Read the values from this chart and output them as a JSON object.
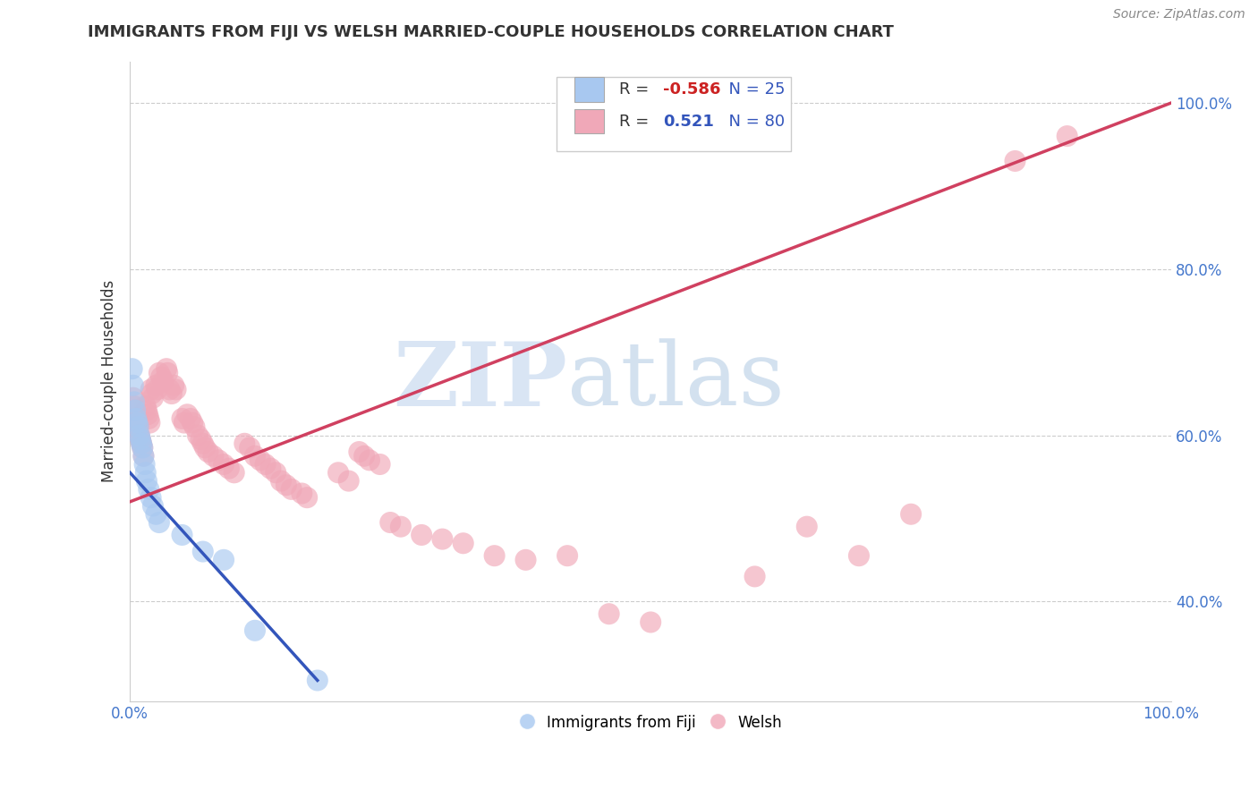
{
  "title": "IMMIGRANTS FROM FIJI VS WELSH MARRIED-COUPLE HOUSEHOLDS CORRELATION CHART",
  "source": "Source: ZipAtlas.com",
  "ylabel": "Married-couple Households",
  "xmin": 0.0,
  "xmax": 1.0,
  "ymin": 0.28,
  "ymax": 1.05,
  "ytick_positions": [
    0.4,
    0.6,
    0.8,
    1.0
  ],
  "fiji_color": "#A8C8F0",
  "welsh_color": "#F0A8B8",
  "fiji_line_color": "#3355BB",
  "welsh_line_color": "#D04060",
  "fiji_R": -0.586,
  "fiji_N": 25,
  "welsh_R": 0.521,
  "welsh_N": 80,
  "watermark_zip": "ZIP",
  "watermark_atlas": "atlas",
  "fiji_scatter": [
    [
      0.002,
      0.68
    ],
    [
      0.003,
      0.66
    ],
    [
      0.004,
      0.64
    ],
    [
      0.005,
      0.63
    ],
    [
      0.006,
      0.62
    ],
    [
      0.007,
      0.615
    ],
    [
      0.008,
      0.61
    ],
    [
      0.009,
      0.6
    ],
    [
      0.01,
      0.595
    ],
    [
      0.011,
      0.59
    ],
    [
      0.012,
      0.585
    ],
    [
      0.013,
      0.575
    ],
    [
      0.014,
      0.565
    ],
    [
      0.015,
      0.555
    ],
    [
      0.016,
      0.545
    ],
    [
      0.018,
      0.535
    ],
    [
      0.02,
      0.525
    ],
    [
      0.022,
      0.515
    ],
    [
      0.025,
      0.505
    ],
    [
      0.028,
      0.495
    ],
    [
      0.05,
      0.48
    ],
    [
      0.07,
      0.46
    ],
    [
      0.09,
      0.45
    ],
    [
      0.12,
      0.365
    ],
    [
      0.18,
      0.305
    ]
  ],
  "welsh_scatter": [
    [
      0.003,
      0.645
    ],
    [
      0.004,
      0.635
    ],
    [
      0.005,
      0.63
    ],
    [
      0.006,
      0.62
    ],
    [
      0.007,
      0.615
    ],
    [
      0.008,
      0.61
    ],
    [
      0.009,
      0.6
    ],
    [
      0.01,
      0.595
    ],
    [
      0.011,
      0.59
    ],
    [
      0.012,
      0.585
    ],
    [
      0.013,
      0.575
    ],
    [
      0.015,
      0.635
    ],
    [
      0.016,
      0.63
    ],
    [
      0.017,
      0.625
    ],
    [
      0.018,
      0.62
    ],
    [
      0.019,
      0.615
    ],
    [
      0.02,
      0.655
    ],
    [
      0.021,
      0.65
    ],
    [
      0.022,
      0.645
    ],
    [
      0.025,
      0.66
    ],
    [
      0.026,
      0.655
    ],
    [
      0.028,
      0.675
    ],
    [
      0.03,
      0.67
    ],
    [
      0.032,
      0.665
    ],
    [
      0.035,
      0.68
    ],
    [
      0.036,
      0.675
    ],
    [
      0.038,
      0.655
    ],
    [
      0.04,
      0.65
    ],
    [
      0.042,
      0.66
    ],
    [
      0.044,
      0.655
    ],
    [
      0.05,
      0.62
    ],
    [
      0.052,
      0.615
    ],
    [
      0.055,
      0.625
    ],
    [
      0.058,
      0.62
    ],
    [
      0.06,
      0.615
    ],
    [
      0.062,
      0.61
    ],
    [
      0.065,
      0.6
    ],
    [
      0.068,
      0.595
    ],
    [
      0.07,
      0.59
    ],
    [
      0.072,
      0.585
    ],
    [
      0.075,
      0.58
    ],
    [
      0.08,
      0.575
    ],
    [
      0.085,
      0.57
    ],
    [
      0.09,
      0.565
    ],
    [
      0.095,
      0.56
    ],
    [
      0.1,
      0.555
    ],
    [
      0.11,
      0.59
    ],
    [
      0.115,
      0.585
    ],
    [
      0.12,
      0.575
    ],
    [
      0.125,
      0.57
    ],
    [
      0.13,
      0.565
    ],
    [
      0.135,
      0.56
    ],
    [
      0.14,
      0.555
    ],
    [
      0.145,
      0.545
    ],
    [
      0.15,
      0.54
    ],
    [
      0.155,
      0.535
    ],
    [
      0.165,
      0.53
    ],
    [
      0.17,
      0.525
    ],
    [
      0.2,
      0.555
    ],
    [
      0.21,
      0.545
    ],
    [
      0.22,
      0.58
    ],
    [
      0.225,
      0.575
    ],
    [
      0.23,
      0.57
    ],
    [
      0.24,
      0.565
    ],
    [
      0.25,
      0.495
    ],
    [
      0.26,
      0.49
    ],
    [
      0.28,
      0.48
    ],
    [
      0.3,
      0.475
    ],
    [
      0.32,
      0.47
    ],
    [
      0.35,
      0.455
    ],
    [
      0.38,
      0.45
    ],
    [
      0.42,
      0.455
    ],
    [
      0.46,
      0.385
    ],
    [
      0.5,
      0.375
    ],
    [
      0.6,
      0.43
    ],
    [
      0.65,
      0.49
    ],
    [
      0.7,
      0.455
    ],
    [
      0.75,
      0.505
    ],
    [
      0.85,
      0.93
    ],
    [
      0.9,
      0.96
    ]
  ],
  "fiji_line": [
    [
      0.0,
      0.555
    ],
    [
      0.18,
      0.305
    ]
  ],
  "welsh_line": [
    [
      0.0,
      0.52
    ],
    [
      1.0,
      1.0
    ]
  ]
}
